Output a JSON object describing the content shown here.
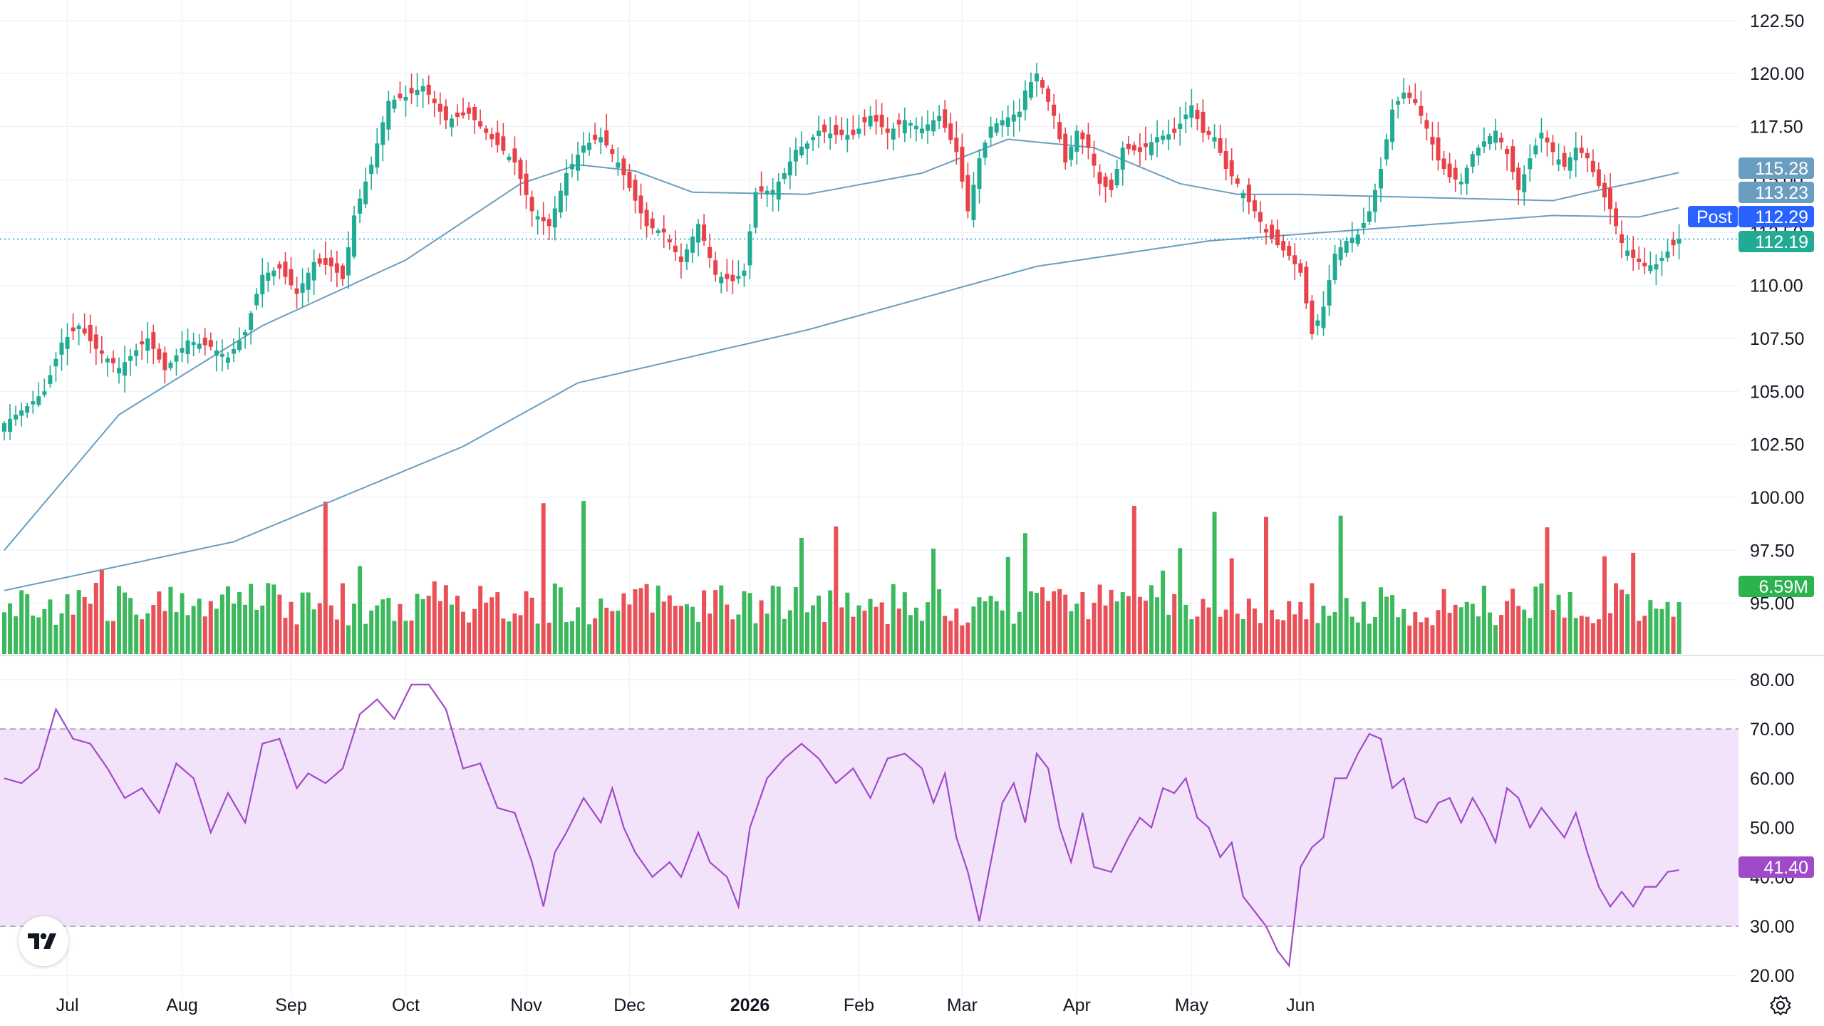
{
  "colors": {
    "up": "#22ab94",
    "up_bar": "#2bb34f",
    "down": "#e8414a",
    "ma": "#6a9ec0",
    "rsi": "#a04ac9",
    "rsi_band": "#f2e3fb",
    "last_price": "#0e9ff2",
    "grid": "#f0f3fa",
    "text": "#131722"
  },
  "price_axis": {
    "ticks": [
      "122.50",
      "120.00",
      "117.50",
      "115.00",
      "112.50",
      "110.00",
      "107.50",
      "105.00",
      "102.50",
      "100.00",
      "97.50",
      "95.00"
    ]
  },
  "rsi_axis": {
    "ticks": [
      "80.00",
      "70.00",
      "60.00",
      "50.00",
      "40.00",
      "30.00",
      "20.00"
    ]
  },
  "time_axis": {
    "labels": [
      {
        "text": "Jul",
        "bold": false
      },
      {
        "text": "Aug",
        "bold": false
      },
      {
        "text": "Sep",
        "bold": false
      },
      {
        "text": "Oct",
        "bold": false
      },
      {
        "text": "Nov",
        "bold": false
      },
      {
        "text": "Dec",
        "bold": false
      },
      {
        "text": "2026",
        "bold": true
      },
      {
        "text": "Feb",
        "bold": false
      },
      {
        "text": "Mar",
        "bold": false
      },
      {
        "text": "Apr",
        "bold": false
      },
      {
        "text": "May",
        "bold": false
      },
      {
        "text": "Jun",
        "bold": false
      }
    ]
  },
  "badges": {
    "ma50": "115.28",
    "ma200": "113.23",
    "post_label": "Post",
    "post_price": "112.29",
    "last_price": "112.19",
    "volume": "6.59M",
    "rsi": "41.40"
  },
  "chart_data": {
    "type": "candlestick",
    "price_range": [
      92.6,
      123.0
    ],
    "rsi_range": [
      17.0,
      82.0
    ],
    "rsi_band": [
      30,
      70
    ],
    "last_price": 112.19,
    "post_price": 112.29,
    "ma50_last": 115.28,
    "ma200_last": 113.23,
    "ma50_anchors": [
      [
        0,
        97.5
      ],
      [
        20,
        103.9
      ],
      [
        45,
        108.1
      ],
      [
        70,
        111.2
      ],
      [
        90,
        114.8
      ],
      [
        100,
        115.7
      ],
      [
        110,
        115.4
      ],
      [
        120,
        114.4
      ],
      [
        140,
        114.3
      ],
      [
        160,
        115.3
      ],
      [
        175,
        116.9
      ],
      [
        190,
        116.5
      ],
      [
        205,
        114.8
      ],
      [
        215,
        114.3
      ],
      [
        225,
        114.3
      ],
      [
        240,
        114.2
      ],
      [
        255,
        114.1
      ],
      [
        270,
        114.0
      ],
      [
        278,
        114.5
      ],
      [
        285,
        114.9
      ]
    ],
    "ma200_anchors": [
      [
        0,
        95.6
      ],
      [
        40,
        97.9
      ],
      [
        80,
        102.4
      ],
      [
        100,
        105.4
      ],
      [
        140,
        107.9
      ],
      [
        180,
        110.9
      ],
      [
        210,
        112.1
      ],
      [
        240,
        112.7
      ],
      [
        270,
        113.3
      ],
      [
        285,
        113.23
      ]
    ],
    "close_anchors": [
      [
        0,
        103.5
      ],
      [
        4,
        104.3
      ],
      [
        7,
        105.0
      ],
      [
        10,
        107.3
      ],
      [
        13,
        108.1
      ],
      [
        16,
        107.0
      ],
      [
        20,
        106.1
      ],
      [
        25,
        107.5
      ],
      [
        28,
        106.0
      ],
      [
        32,
        107.4
      ],
      [
        36,
        107.1
      ],
      [
        39,
        106.6
      ],
      [
        42,
        107.8
      ],
      [
        45,
        110.5
      ],
      [
        48,
        110.8
      ],
      [
        51,
        109.6
      ],
      [
        54,
        111.1
      ],
      [
        57,
        110.9
      ],
      [
        59,
        110.3
      ],
      [
        61,
        113.3
      ],
      [
        64,
        115.7
      ],
      [
        67,
        118.7
      ],
      [
        70,
        118.9
      ],
      [
        73,
        119.4
      ],
      [
        77,
        117.8
      ],
      [
        81,
        118.1
      ],
      [
        85,
        116.9
      ],
      [
        89,
        115.8
      ],
      [
        92,
        113.5
      ],
      [
        95,
        112.8
      ],
      [
        98,
        115.3
      ],
      [
        101,
        116.6
      ],
      [
        104,
        117.0
      ],
      [
        107,
        115.8
      ],
      [
        110,
        114.0
      ],
      [
        112,
        112.8
      ],
      [
        115,
        112.5
      ],
      [
        118,
        111.1
      ],
      [
        121,
        112.9
      ],
      [
        124,
        110.5
      ],
      [
        127,
        110.2
      ],
      [
        129,
        110.7
      ],
      [
        131,
        114.4
      ],
      [
        134,
        114.5
      ],
      [
        136,
        115.3
      ],
      [
        138,
        116.4
      ],
      [
        140,
        116.7
      ],
      [
        142,
        117.3
      ],
      [
        145,
        117.1
      ],
      [
        148,
        117.1
      ],
      [
        151,
        118.0
      ],
      [
        154,
        117.2
      ],
      [
        157,
        117.8
      ],
      [
        160,
        117.4
      ],
      [
        163,
        118.0
      ],
      [
        166,
        116.3
      ],
      [
        168,
        113.5
      ],
      [
        170,
        116.0
      ],
      [
        172,
        117.5
      ],
      [
        174,
        117.8
      ],
      [
        177,
        118.2
      ],
      [
        178,
        119.2
      ],
      [
        180,
        120.0
      ],
      [
        183,
        118.0
      ],
      [
        185,
        115.8
      ],
      [
        187,
        117.3
      ],
      [
        189,
        116.5
      ],
      [
        191,
        114.8
      ],
      [
        193,
        114.5
      ],
      [
        195,
        116.5
      ],
      [
        198,
        116.3
      ],
      [
        201,
        117.0
      ],
      [
        204,
        117.2
      ],
      [
        207,
        118.5
      ],
      [
        209,
        117.2
      ],
      [
        211,
        117.0
      ],
      [
        213,
        115.5
      ],
      [
        215,
        114.8
      ],
      [
        218,
        113.5
      ],
      [
        220,
        112.5
      ],
      [
        222,
        111.9
      ],
      [
        224,
        111.4
      ],
      [
        226,
        110.6
      ],
      [
        228,
        107.7
      ],
      [
        230,
        109.0
      ],
      [
        232,
        111.5
      ],
      [
        234,
        112.1
      ],
      [
        236,
        112.4
      ],
      [
        238,
        113.5
      ],
      [
        240,
        115.5
      ],
      [
        242,
        118.3
      ],
      [
        244,
        119.1
      ],
      [
        246,
        118.6
      ],
      [
        248,
        117.4
      ],
      [
        250,
        115.9
      ],
      [
        252,
        115.1
      ],
      [
        254,
        114.9
      ],
      [
        256,
        116.2
      ],
      [
        258,
        116.8
      ],
      [
        260,
        117.3
      ],
      [
        262,
        116.2
      ],
      [
        264,
        114.5
      ],
      [
        266,
        116.0
      ],
      [
        268,
        117.2
      ],
      [
        270,
        116.3
      ],
      [
        272,
        115.6
      ],
      [
        274,
        116.5
      ],
      [
        276,
        116.0
      ],
      [
        278,
        114.7
      ],
      [
        280,
        113.6
      ],
      [
        282,
        112.0
      ],
      [
        284,
        111.3
      ],
      [
        286,
        110.9
      ],
      [
        288,
        111.0
      ],
      [
        290,
        111.6
      ],
      [
        292,
        112.19
      ]
    ],
    "rsi_anchors": [
      [
        0,
        60.0
      ],
      [
        3,
        59.0
      ],
      [
        6,
        62.0
      ],
      [
        9,
        74.0
      ],
      [
        12,
        68.0
      ],
      [
        15,
        67.0
      ],
      [
        18,
        62.0
      ],
      [
        21,
        56.0
      ],
      [
        24,
        58.0
      ],
      [
        27,
        53.0
      ],
      [
        30,
        63.0
      ],
      [
        33,
        60.0
      ],
      [
        36,
        49.0
      ],
      [
        39,
        57.0
      ],
      [
        42,
        51.0
      ],
      [
        45,
        67.0
      ],
      [
        48,
        68.0
      ],
      [
        51,
        58.0
      ],
      [
        53,
        61.0
      ],
      [
        56,
        59.0
      ],
      [
        59,
        62.0
      ],
      [
        62,
        73.0
      ],
      [
        65,
        76.0
      ],
      [
        68,
        72.0
      ],
      [
        71,
        79.0
      ],
      [
        74,
        79.0
      ],
      [
        77,
        74.0
      ],
      [
        80,
        62.0
      ],
      [
        83,
        63.0
      ],
      [
        86,
        54.0
      ],
      [
        89,
        53.0
      ],
      [
        92,
        43.0
      ],
      [
        94,
        34.0
      ],
      [
        96,
        45.0
      ],
      [
        98,
        49.0
      ],
      [
        101,
        56.0
      ],
      [
        104,
        51.0
      ],
      [
        106,
        58.0
      ],
      [
        108,
        50.0
      ],
      [
        110,
        45.0
      ],
      [
        113,
        40.0
      ],
      [
        116,
        43.0
      ],
      [
        118,
        40.0
      ],
      [
        121,
        49.0
      ],
      [
        123,
        43.0
      ],
      [
        126,
        40.0
      ],
      [
        128,
        34.0
      ],
      [
        130,
        50.0
      ],
      [
        133,
        60.0
      ],
      [
        136,
        64.0
      ],
      [
        139,
        67.0
      ],
      [
        142,
        64.0
      ],
      [
        145,
        59.0
      ],
      [
        148,
        62.0
      ],
      [
        151,
        56.0
      ],
      [
        154,
        64.0
      ],
      [
        157,
        65.0
      ],
      [
        160,
        62.0
      ],
      [
        162,
        55.0
      ],
      [
        164,
        61.0
      ],
      [
        166,
        48.0
      ],
      [
        168,
        41.0
      ],
      [
        170,
        31.0
      ],
      [
        172,
        43.0
      ],
      [
        174,
        55.0
      ],
      [
        176,
        59.0
      ],
      [
        178,
        51.0
      ],
      [
        180,
        65.0
      ],
      [
        182,
        62.0
      ],
      [
        184,
        50.0
      ],
      [
        186,
        43.0
      ],
      [
        188,
        53.0
      ],
      [
        190,
        42.0
      ],
      [
        193,
        41.0
      ],
      [
        196,
        48.0
      ],
      [
        198,
        52.0
      ],
      [
        200,
        50.0
      ],
      [
        202,
        58.0
      ],
      [
        204,
        57.0
      ],
      [
        206,
        60.0
      ],
      [
        208,
        52.0
      ],
      [
        210,
        50.0
      ],
      [
        212,
        44.0
      ],
      [
        214,
        47.0
      ],
      [
        216,
        36.0
      ],
      [
        218,
        33.0
      ],
      [
        220,
        30.0
      ],
      [
        222,
        25.0
      ],
      [
        224,
        22.0
      ],
      [
        226,
        42.0
      ],
      [
        228,
        46.0
      ],
      [
        230,
        48.0
      ],
      [
        232,
        60.0
      ],
      [
        234,
        60.0
      ],
      [
        236,
        65.0
      ],
      [
        238,
        69.0
      ],
      [
        240,
        68.0
      ],
      [
        242,
        58.0
      ],
      [
        244,
        60.0
      ],
      [
        246,
        52.0
      ],
      [
        248,
        51.0
      ],
      [
        250,
        55.0
      ],
      [
        252,
        56.0
      ],
      [
        254,
        51.0
      ],
      [
        256,
        56.0
      ],
      [
        258,
        52.0
      ],
      [
        260,
        47.0
      ],
      [
        262,
        58.0
      ],
      [
        264,
        56.0
      ],
      [
        266,
        50.0
      ],
      [
        268,
        54.0
      ],
      [
        270,
        51.0
      ],
      [
        272,
        48.0
      ],
      [
        274,
        53.0
      ],
      [
        276,
        45.0
      ],
      [
        278,
        38.0
      ],
      [
        280,
        34.0
      ],
      [
        282,
        37.0
      ],
      [
        284,
        34.0
      ],
      [
        286,
        38.0
      ],
      [
        288,
        38.0
      ],
      [
        290,
        41.0
      ],
      [
        292,
        41.4
      ]
    ],
    "volume_last": "6.59M"
  }
}
